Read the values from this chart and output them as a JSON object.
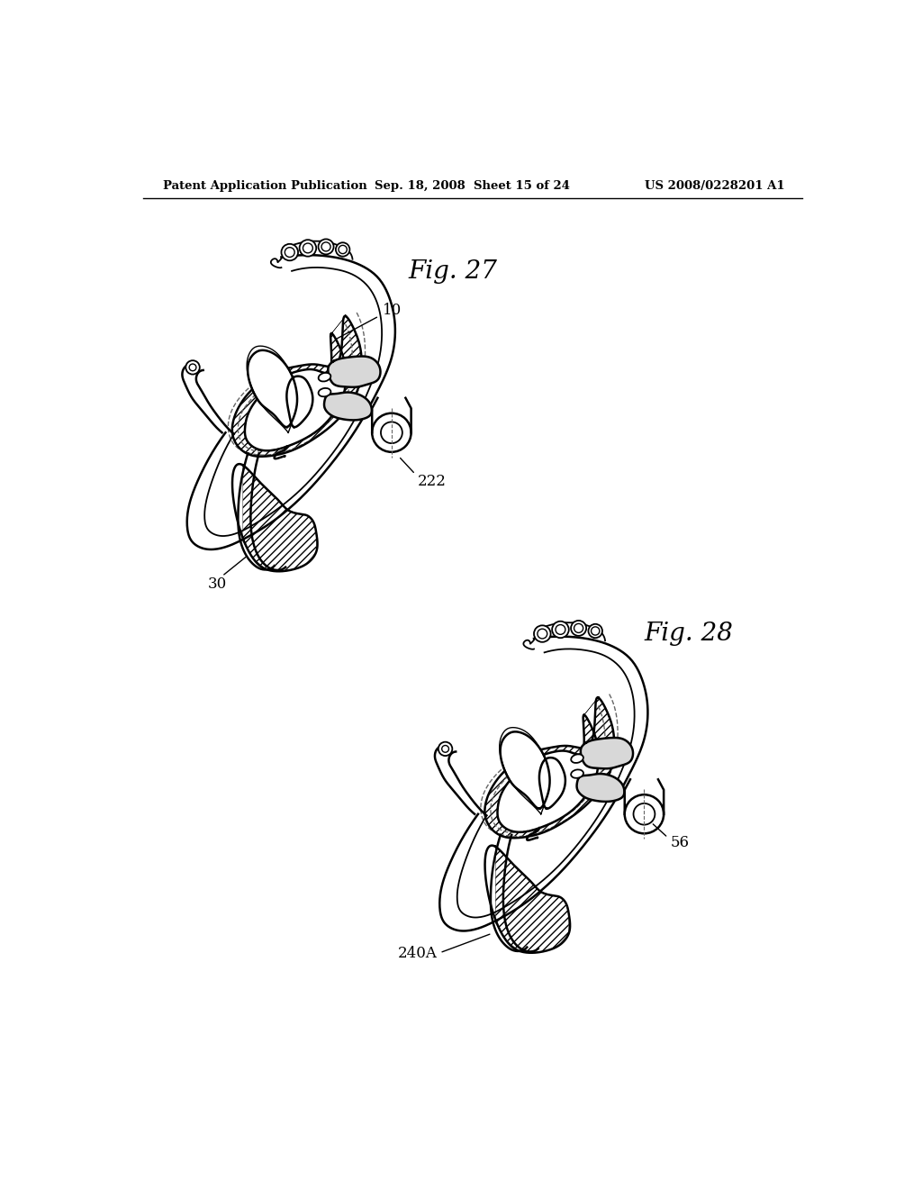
{
  "background_color": "#ffffff",
  "header_left": "Patent Application Publication",
  "header_mid": "Sep. 18, 2008  Sheet 15 of 24",
  "header_right": "US 2008/0228201 A1",
  "fig27_label": "Fig. 27",
  "fig28_label": "Fig. 28",
  "label_10": "10",
  "label_30": "30",
  "label_222": "222",
  "label_240A": "240A",
  "label_56": "56",
  "line_color": "#000000",
  "hatch_color": "#000000"
}
